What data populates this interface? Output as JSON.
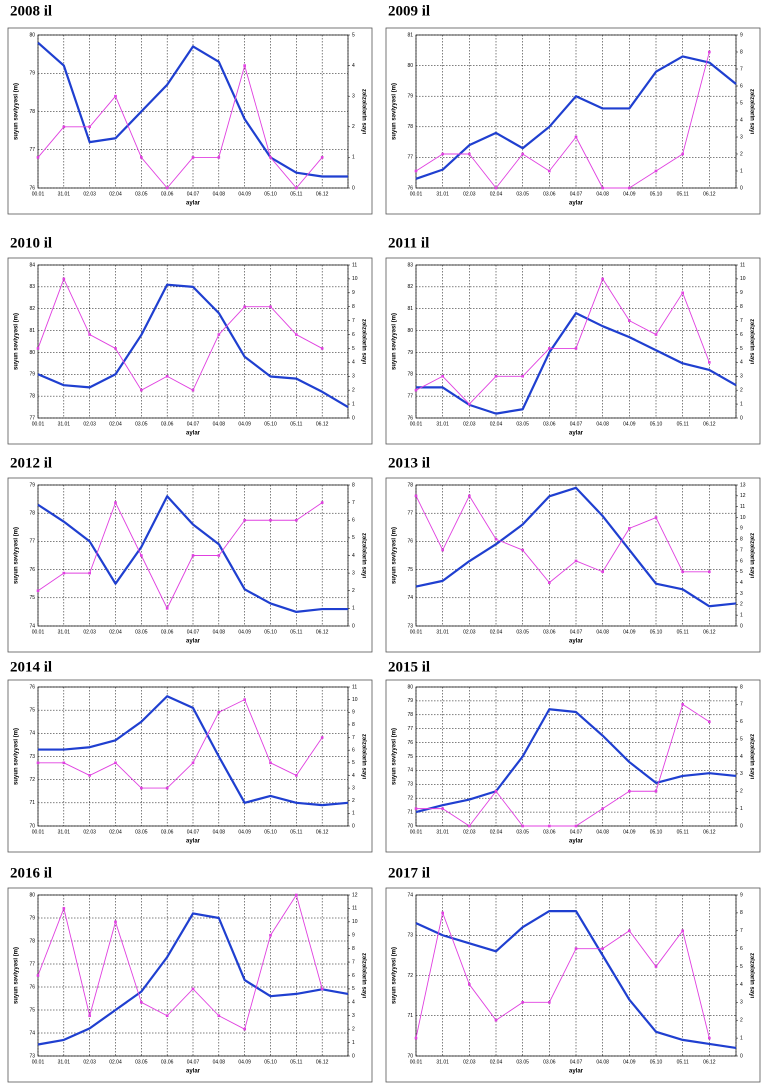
{
  "chart_data": [
    {
      "type": "line",
      "title": "2008 il",
      "x_label": "aylar",
      "y_label": "suyun səviyyəsi (m)",
      "y2_label": "zəlzələlərin sayı",
      "categories": [
        "00.01",
        "31.01",
        "02.03",
        "02.04",
        "03.05",
        "03.06",
        "04.07",
        "04.08",
        "04.09",
        "05.10",
        "05.11",
        "06.12",
        null
      ],
      "ylim": [
        76,
        80
      ],
      "yticks": [
        76,
        77,
        78,
        79,
        80
      ],
      "y2lim": [
        0,
        5
      ],
      "y2ticks": [
        0,
        1,
        2,
        3,
        4,
        5
      ],
      "grid": true,
      "series": [
        {
          "color": "#1f3fd0",
          "values": [
            79.8,
            79.2,
            77.2,
            77.3,
            78,
            78.7,
            79.7,
            79.3,
            77.8,
            76.8,
            76.4,
            76.3,
            76.3
          ]
        },
        {
          "color": "#e040e0",
          "axis": "y2",
          "values": [
            1,
            2,
            2,
            3,
            1,
            0,
            1,
            1,
            4,
            1,
            0,
            1,
            null
          ]
        }
      ]
    },
    {
      "type": "line",
      "title": "2009 il",
      "x_label": "aylar",
      "y_label": "suyun səviyyəsi (m)",
      "y2_label": "zəlzələlərin sayı",
      "categories": [
        "00.01",
        "31.01",
        "02.03",
        "02.04",
        "03.05",
        "03.06",
        "04.07",
        "04.08",
        "04.09",
        "05.10",
        "05.11",
        "06.12",
        null
      ],
      "ylim": [
        76,
        81
      ],
      "yticks": [
        76,
        77,
        78,
        79,
        80,
        81
      ],
      "y2lim": [
        0,
        9
      ],
      "y2ticks": [
        0,
        1,
        2,
        3,
        4,
        5,
        6,
        7,
        8,
        9
      ],
      "grid": true,
      "series": [
        {
          "color": "#1f3fd0",
          "values": [
            76.3,
            76.6,
            77.4,
            77.8,
            77.3,
            78,
            79,
            78.6,
            78.6,
            79.8,
            80.3,
            80.1,
            79.4
          ]
        },
        {
          "color": "#e040e0",
          "axis": "y2",
          "values": [
            1,
            2,
            2,
            0,
            2,
            1,
            3,
            0,
            0,
            1,
            2,
            8,
            null
          ]
        }
      ]
    },
    {
      "type": "line",
      "title": "2010 il",
      "x_label": "aylar",
      "y_label": "suyun səviyyəsi (m)",
      "y2_label": "zəlzələlərin sayı",
      "categories": [
        "00.01",
        "31.01",
        "02.03",
        "02.04",
        "03.05",
        "03.06",
        "04.07",
        "04.08",
        "04.09",
        "05.10",
        "05.11",
        "06.12",
        null
      ],
      "ylim": [
        77,
        84
      ],
      "yticks": [
        77,
        78,
        79,
        80,
        81,
        82,
        83,
        84
      ],
      "y2lim": [
        0,
        11
      ],
      "y2ticks": [
        0,
        1,
        2,
        3,
        4,
        5,
        6,
        7,
        8,
        9,
        10,
        11
      ],
      "grid": true,
      "series": [
        {
          "color": "#1f3fd0",
          "values": [
            79,
            78.5,
            78.4,
            79,
            80.8,
            83.1,
            83,
            81.8,
            79.8,
            78.9,
            78.8,
            78.2,
            77.5
          ]
        },
        {
          "color": "#e040e0",
          "axis": "y2",
          "values": [
            5,
            10,
            6,
            5,
            2,
            3,
            2,
            6,
            8,
            8,
            6,
            5,
            null
          ]
        }
      ]
    },
    {
      "type": "line",
      "title": "2011 il",
      "x_label": "aylar",
      "y_label": "suyun səviyyəsi (m)",
      "y2_label": "zəlzələlərin sayı",
      "categories": [
        "00.01",
        "31.01",
        "02.03",
        "02.04",
        "03.05",
        "03.06",
        "04.07",
        "04.08",
        "04.09",
        "05.10",
        "05.11",
        "06.12",
        null
      ],
      "ylim": [
        76,
        83
      ],
      "yticks": [
        76,
        77,
        78,
        79,
        80,
        81,
        82,
        83
      ],
      "y2lim": [
        0,
        11
      ],
      "y2ticks": [
        0,
        1,
        2,
        3,
        4,
        5,
        6,
        7,
        8,
        9,
        10,
        11
      ],
      "grid": true,
      "series": [
        {
          "color": "#1f3fd0",
          "values": [
            77.4,
            77.4,
            76.6,
            76.2,
            76.4,
            79,
            80.8,
            80.2,
            79.7,
            79.1,
            78.5,
            78.2,
            77.5
          ]
        },
        {
          "color": "#e040e0",
          "axis": "y2",
          "values": [
            2,
            3,
            1,
            3,
            3,
            5,
            5,
            10,
            7,
            6,
            9,
            4,
            null
          ]
        }
      ]
    },
    {
      "type": "line",
      "title": "2012 il",
      "x_label": "aylar",
      "y_label": "suyun səviyyəsi (m)",
      "y2_label": "zəlzələlərin sayı",
      "categories": [
        "00.01",
        "31.01",
        "02.03",
        "02.04",
        "03.05",
        "03.06",
        "04.07",
        "04.08",
        "04.09",
        "05.10",
        "05.11",
        "06.12",
        null
      ],
      "ylim": [
        74,
        79
      ],
      "yticks": [
        74,
        75,
        76,
        77,
        78,
        79
      ],
      "y2lim": [
        0,
        8
      ],
      "y2ticks": [
        0,
        1,
        2,
        3,
        4,
        5,
        6,
        7,
        8
      ],
      "grid": true,
      "series": [
        {
          "color": "#1f3fd0",
          "values": [
            78.3,
            77.7,
            77,
            75.5,
            76.8,
            78.6,
            77.6,
            76.9,
            75.3,
            74.8,
            74.5,
            74.6,
            74.6
          ]
        },
        {
          "color": "#e040e0",
          "axis": "y2",
          "values": [
            2,
            3,
            3,
            7,
            4,
            1,
            4,
            4,
            6,
            6,
            6,
            7,
            null
          ]
        }
      ]
    },
    {
      "type": "line",
      "title": "2013 il",
      "x_label": "aylar",
      "y_label": "suyun səviyyəsi (m)",
      "y2_label": "zəlzələlərin sayı",
      "categories": [
        "00.01",
        "31.01",
        "02.03",
        "02.04",
        "03.05",
        "03.06",
        "04.07",
        "04.08",
        "04.09",
        "05.10",
        "05.11",
        "06.12",
        null
      ],
      "ylim": [
        73,
        78
      ],
      "yticks": [
        73,
        74,
        75,
        76,
        77,
        78
      ],
      "y2lim": [
        0,
        13
      ],
      "y2ticks": [
        0,
        1,
        2,
        3,
        4,
        5,
        6,
        7,
        8,
        9,
        10,
        11,
        12,
        13
      ],
      "grid": true,
      "series": [
        {
          "color": "#1f3fd0",
          "values": [
            74.4,
            74.6,
            75.3,
            75.9,
            76.6,
            77.6,
            77.9,
            76.9,
            75.7,
            74.5,
            74.3,
            73.7,
            73.8
          ]
        },
        {
          "color": "#e040e0",
          "axis": "y2",
          "values": [
            12,
            7,
            12,
            8,
            7,
            4,
            6,
            5,
            9,
            10,
            5,
            5,
            null
          ]
        }
      ]
    },
    {
      "type": "line",
      "title": "2014 il",
      "x_label": "aylar",
      "y_label": "suyun səviyyəsi (m)",
      "y2_label": "zəlzələlərin sayı",
      "categories": [
        "00.01",
        "31.01",
        "02.03",
        "02.04",
        "03.05",
        "03.06",
        "04.07",
        "04.08",
        "04.09",
        "05.10",
        "05.11",
        "06.12",
        null
      ],
      "ylim": [
        70,
        76
      ],
      "yticks": [
        70,
        71,
        72,
        73,
        74,
        75,
        76
      ],
      "y2lim": [
        0,
        11
      ],
      "y2ticks": [
        0,
        1,
        2,
        3,
        4,
        5,
        6,
        7,
        8,
        9,
        10,
        11
      ],
      "grid": true,
      "series": [
        {
          "color": "#1f3fd0",
          "values": [
            73.3,
            73.3,
            73.4,
            73.7,
            74.5,
            75.6,
            75.1,
            73,
            71,
            71.3,
            71,
            70.9,
            71
          ]
        },
        {
          "color": "#e040e0",
          "axis": "y2",
          "values": [
            5,
            5,
            4,
            5,
            3,
            3,
            5,
            9,
            10,
            5,
            4,
            7,
            null
          ]
        }
      ]
    },
    {
      "type": "line",
      "title": "2015 il",
      "x_label": "aylar",
      "y_label": "suyun səviyyəsi (m)",
      "y2_label": "zəlzələlərin sayı",
      "categories": [
        "00.01",
        "31.01",
        "02.03",
        "02.04",
        "03.05",
        "03.06",
        "04.07",
        "04.08",
        "04.09",
        "05.10",
        "05.11",
        "06.12",
        null
      ],
      "ylim": [
        70,
        80
      ],
      "yticks": [
        70,
        71,
        72,
        73,
        74,
        75,
        76,
        77,
        78,
        79,
        80
      ],
      "y2lim": [
        0,
        8
      ],
      "y2ticks": [
        0,
        1,
        2,
        3,
        4,
        5,
        6,
        7,
        8
      ],
      "grid": true,
      "series": [
        {
          "color": "#1f3fd0",
          "values": [
            71,
            71.5,
            71.9,
            72.5,
            75,
            78.4,
            78.2,
            76.5,
            74.6,
            73.1,
            73.6,
            73.8,
            73.6
          ]
        },
        {
          "color": "#e040e0",
          "axis": "y2",
          "values": [
            1,
            1,
            0,
            2,
            0,
            0,
            0,
            1,
            2,
            2,
            7,
            6,
            null
          ]
        }
      ]
    },
    {
      "type": "line",
      "title": "2016 il",
      "x_label": "aylar",
      "y_label": "suyun səviyyəsi (m)",
      "y2_label": "zəlzələlərin sayı",
      "categories": [
        "00.01",
        "31.01",
        "02.03",
        "02.04",
        "03.05",
        "03.06",
        "04.07",
        "04.08",
        "04.09",
        "05.10",
        "05.11",
        "06.12",
        null
      ],
      "ylim": [
        73,
        80
      ],
      "yticks": [
        73,
        74,
        75,
        76,
        77,
        78,
        79,
        80
      ],
      "y2lim": [
        0,
        12
      ],
      "y2ticks": [
        0,
        1,
        2,
        3,
        4,
        5,
        6,
        7,
        8,
        9,
        10,
        11,
        12
      ],
      "grid": true,
      "series": [
        {
          "color": "#1f3fd0",
          "values": [
            73.5,
            73.7,
            74.2,
            75,
            75.8,
            77.3,
            79.2,
            79,
            76.3,
            75.6,
            75.7,
            75.9,
            75.7
          ]
        },
        {
          "color": "#e040e0",
          "axis": "y2",
          "values": [
            6,
            11,
            3,
            10,
            4,
            3,
            5,
            3,
            2,
            9,
            12,
            5,
            null
          ]
        }
      ]
    },
    {
      "type": "line",
      "title": "2017 il",
      "x_label": "aylar",
      "y_label": "suyun səviyyəsi (m)",
      "y2_label": "zəlzələlərin sayı",
      "categories": [
        "00.01",
        "31.01",
        "02.03",
        "02.04",
        "03.05",
        "03.06",
        "04.07",
        "04.08",
        "04.09",
        "05.10",
        "05.11",
        "06.12",
        null
      ],
      "ylim": [
        70,
        74
      ],
      "yticks": [
        70,
        71,
        72,
        73,
        74
      ],
      "y2lim": [
        0,
        9
      ],
      "y2ticks": [
        0,
        1,
        2,
        3,
        4,
        5,
        6,
        7,
        8,
        9
      ],
      "grid": true,
      "series": [
        {
          "color": "#1f3fd0",
          "values": [
            73.3,
            73,
            72.8,
            72.6,
            73.2,
            73.6,
            73.6,
            72.5,
            71.4,
            70.6,
            70.4,
            70.3,
            70.2
          ]
        },
        {
          "color": "#e040e0",
          "axis": "y2",
          "values": [
            1,
            8,
            4,
            2,
            3,
            3,
            6,
            6,
            7,
            5,
            7,
            1,
            null
          ]
        }
      ]
    }
  ]
}
